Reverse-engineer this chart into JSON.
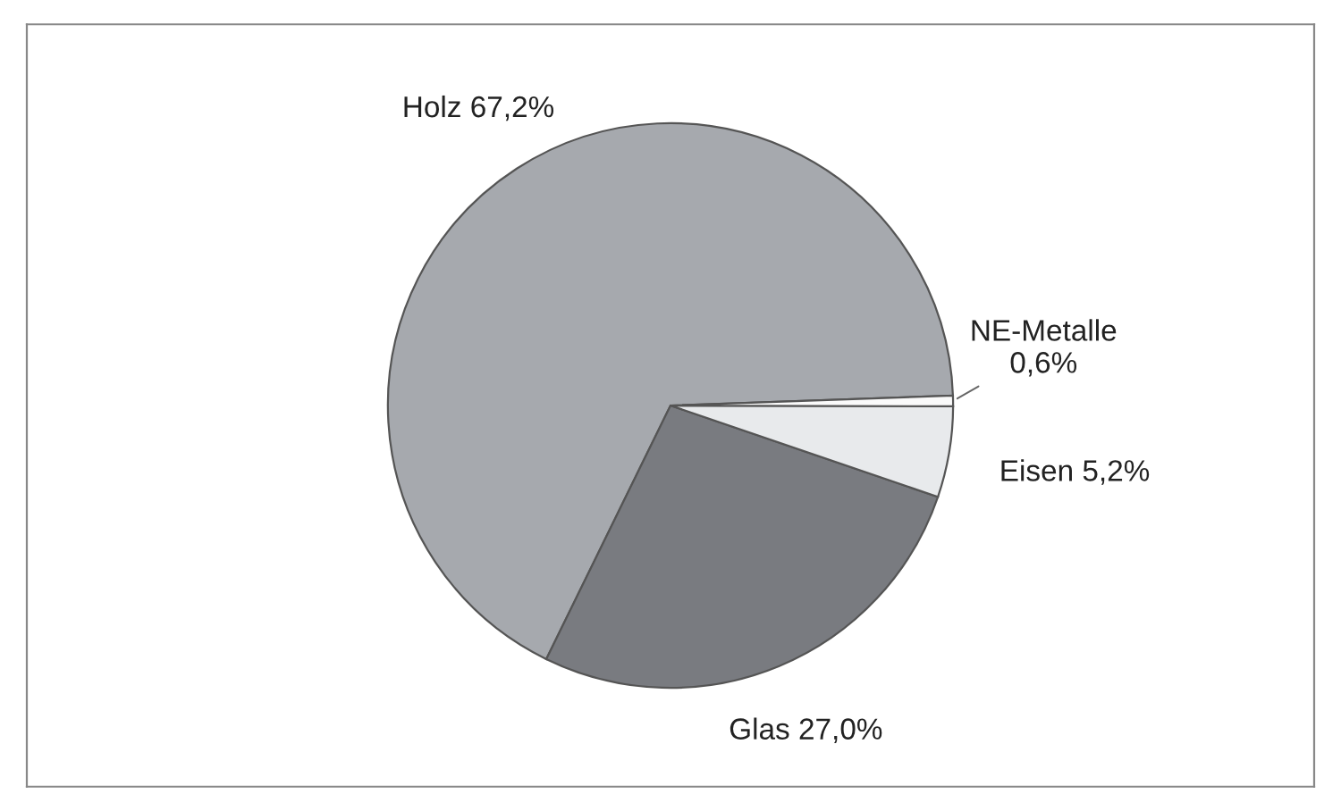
{
  "chart_data": {
    "type": "pie",
    "categories": [
      "Holz",
      "Glas",
      "Eisen",
      "NE-Metalle"
    ],
    "values": [
      67.2,
      27.0,
      5.2,
      0.6
    ],
    "value_labels": [
      "67,2%",
      "27,0%",
      "5,2%",
      "0,6%"
    ],
    "colors": [
      "#a6a9ae",
      "#797b80",
      "#e8eaec",
      "#fafafa"
    ]
  }
}
